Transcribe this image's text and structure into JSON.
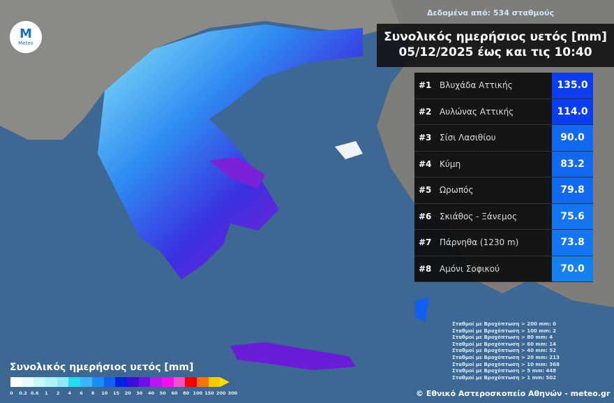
{
  "header": {
    "source": "Δεδομένα από: 534 σταθμούς",
    "title_line1": "Συνολικός ημερήσιος υετός [mm]",
    "title_line2": "05/12/2025 έως και τις 10:40"
  },
  "logo": {
    "mark": "M",
    "text": "Meteo"
  },
  "ranking": [
    {
      "rank": "#1",
      "station": "Βλυχάδα Αττικής",
      "value": "135.0",
      "color": "#0a3ef0"
    },
    {
      "rank": "#2",
      "station": "Αυλώνας Αττικής",
      "value": "114.0",
      "color": "#0a3ef0"
    },
    {
      "rank": "#3",
      "station": "Σίσι Λασιθίου",
      "value": "90.0",
      "color": "#1169f2"
    },
    {
      "rank": "#4",
      "station": "Κύμη",
      "value": "83.2",
      "color": "#1169f2"
    },
    {
      "rank": "#5",
      "station": "Ωρωπός",
      "value": "79.8",
      "color": "#1169f2"
    },
    {
      "rank": "#6",
      "station": "Σκιάθος - Ξάνεμος",
      "value": "75.6",
      "color": "#1475f2"
    },
    {
      "rank": "#7",
      "station": "Πάρνηθα (1230 m)",
      "value": "73.8",
      "color": "#1475f2"
    },
    {
      "rank": "#8",
      "station": "Αμόνι Σοφικού",
      "value": "70.0",
      "color": "#1580f2"
    }
  ],
  "stats": [
    "Σταθμοί με Βροχόπτωση > 200 mm: 0",
    "Σταθμοί με Βροχόπτωση > 100 mm: 2",
    "Σταθμοί με Βροχόπτωση > 80 mm: 4",
    "Σταθμοί με Βροχόπτωση > 60 mm: 14",
    "Σταθμοί με Βροχόπτωση > 40 mm: 52",
    "Σταθμοί με Βροχόπτωση > 20 mm: 213",
    "Σταθμοί με Βροχόπτωση > 10 mm: 368",
    "Σταθμοί με Βροχόπτωση > 5 mm: 448",
    "Σταθμοί με Βροχόπτωση > 1 mm: 502"
  ],
  "copyright": "© Εθνικό Αστεροσκοπείο Αθηνών - meteo.gr",
  "legend": {
    "title": "Συνολικός ημερήσιος υετός [mm]",
    "colors": [
      "#ffffff",
      "#e6fbfb",
      "#c9f6f8",
      "#aef1f7",
      "#8ceaf5",
      "#22dcf3",
      "#3cb4f5",
      "#1a8cf5",
      "#1460f0",
      "#0020e8",
      "#3a10d8",
      "#7010e8",
      "#b818f0",
      "#f010f0",
      "#f050c8",
      "#f00000",
      "#f87010",
      "#f8c800"
    ],
    "ticks": [
      "0",
      "0.2",
      "0.6",
      "1",
      "2",
      "4",
      "6",
      "8",
      "10",
      "15",
      "20",
      "30",
      "40",
      "50",
      "60",
      "80",
      "100",
      "150",
      "200",
      "300"
    ]
  }
}
